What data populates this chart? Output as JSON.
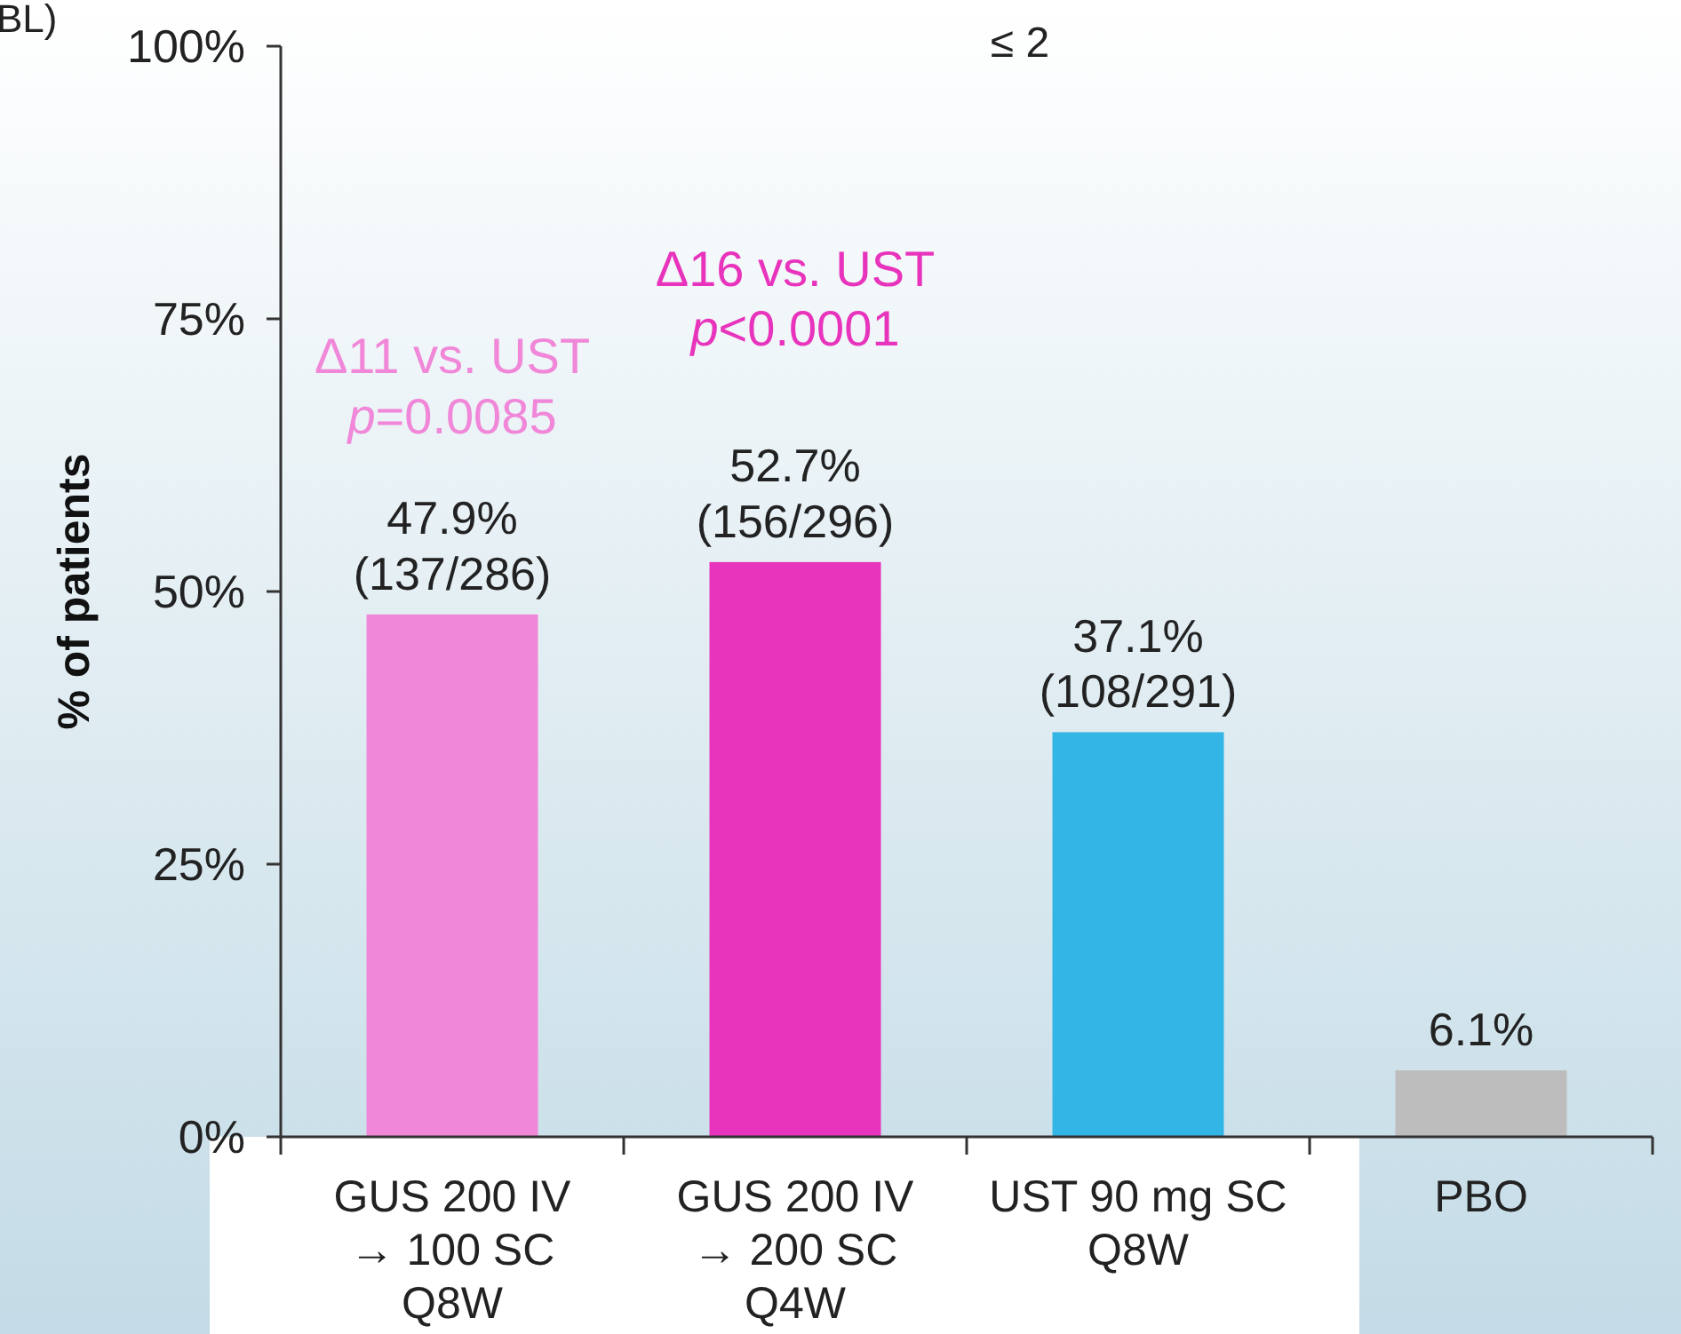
{
  "chart_data": {
    "type": "bar",
    "ylabel": "% of patients",
    "categories": [
      "GUS 200 IV\n→ 100 SC\nQ8W",
      "GUS 200 IV\n→ 200 SC\nQ4W",
      "UST 90 mg SC\nQ8W",
      "PBO"
    ],
    "values": [
      47.9,
      52.7,
      37.1,
      6.1
    ],
    "colors": [
      "#f087d8",
      "#e834bc",
      "#33b5e5",
      "#bdbdbd"
    ],
    "value_labels": [
      "47.9%\n(137/286)",
      "52.7%\n(156/296)",
      "37.1%\n(108/291)",
      "6.1%"
    ],
    "ylim": [
      0,
      100
    ],
    "yticks": [
      {
        "value": 0,
        "label": "0%"
      },
      {
        "value": 25,
        "label": "25%"
      },
      {
        "value": 50,
        "label": "50%"
      },
      {
        "value": 75,
        "label": "75%"
      },
      {
        "value": 100,
        "label": "100%"
      }
    ],
    "grid": false,
    "annotations": [
      "BL)",
      "≤ 2",
      "Δ11 vs. UST\np=0.0085",
      "Δ16 vs. UST\np<0.0001"
    ]
  }
}
